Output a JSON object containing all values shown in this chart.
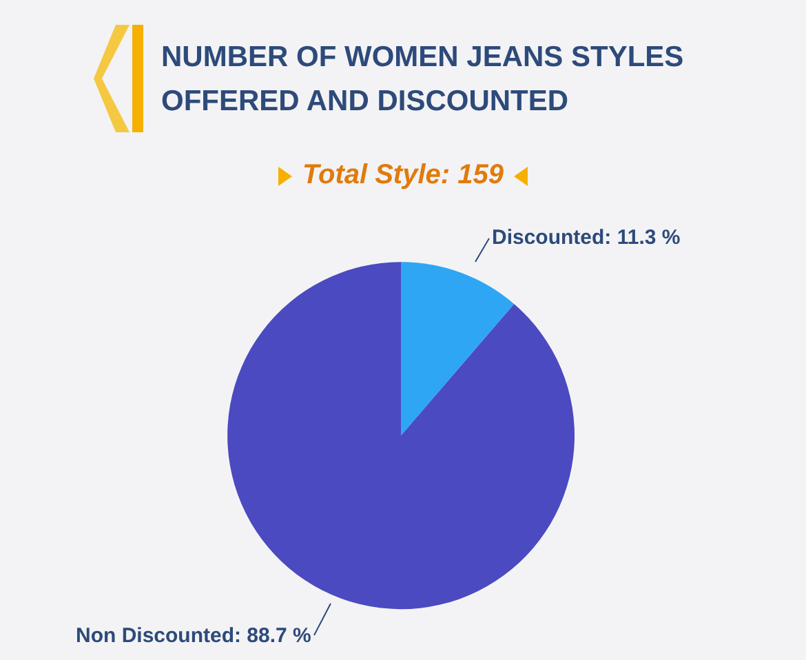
{
  "chart_data": {
    "type": "pie",
    "title": "NUMBER OF WOMEN JEANS STYLES OFFERED AND DISCOUNTED",
    "subtitle": "Total Style: 159",
    "categories": [
      "Discounted",
      "Non Discounted"
    ],
    "values": [
      11.3,
      88.7
    ],
    "value_labels": [
      "11.3 %",
      "88.7 %"
    ],
    "colors": [
      "#2ea6f3",
      "#4b4ac0"
    ],
    "legend": false
  }
}
